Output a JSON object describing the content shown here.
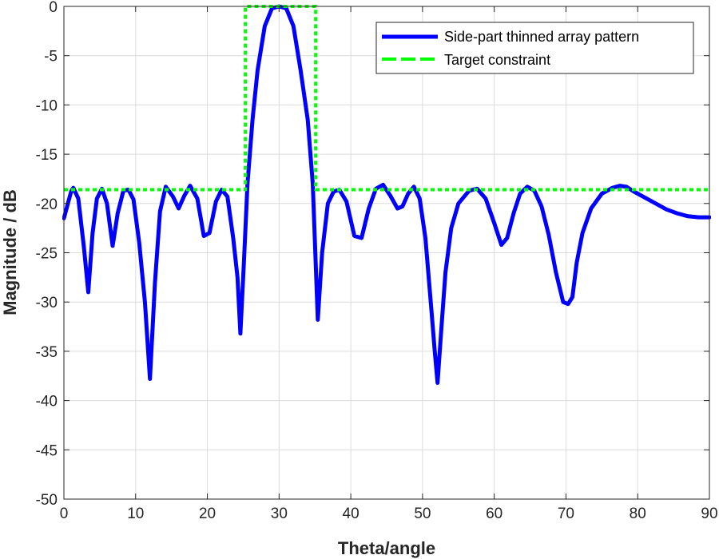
{
  "chart_data": {
    "type": "line",
    "title": "",
    "xlabel": "Theta/angle",
    "ylabel": "Magnitude / dB",
    "xlim": [
      0,
      90
    ],
    "ylim": [
      -50,
      0
    ],
    "xticks": [
      0,
      10,
      20,
      30,
      40,
      50,
      60,
      70,
      80,
      90
    ],
    "yticks": [
      0,
      -5,
      -10,
      -15,
      -20,
      -25,
      -30,
      -35,
      -40,
      -45,
      -50
    ],
    "xtick_labels": [
      "0",
      "10",
      "20",
      "30",
      "40",
      "50",
      "60",
      "70",
      "80",
      "90"
    ],
    "ytick_labels": [
      "0",
      "-5",
      "-10",
      "-15",
      "-20",
      "-25",
      "-30",
      "-35",
      "-40",
      "-45",
      "-50"
    ],
    "grid": true,
    "legend_position": "top-right",
    "series": [
      {
        "name": "Side-part thinned array pattern",
        "color": "#0000ff",
        "style": "solid",
        "x": [
          0,
          1,
          1.3,
          2,
          2.8,
          3.4,
          4,
          4.6,
          5.3,
          6,
          6.8,
          7.5,
          8.3,
          9,
          9.7,
          10.5,
          11.3,
          12,
          12.7,
          13.4,
          14.2,
          15.2,
          16,
          16.8,
          17.6,
          18.6,
          19.5,
          20.3,
          21.2,
          22,
          22.8,
          23.6,
          24.2,
          24.6,
          25.1,
          25.6,
          26.3,
          27,
          28,
          29,
          30,
          31,
          32,
          33,
          34,
          34.7,
          35.4,
          36,
          36.8,
          37.6,
          38.4,
          39.4,
          40.5,
          41.5,
          42.5,
          43.5,
          44.5,
          45.5,
          46.5,
          47.2,
          48,
          48.8,
          49.6,
          50.4,
          51.2,
          51.7,
          52.1,
          52.6,
          53.2,
          54,
          55,
          56.5,
          57.6,
          58.8,
          60,
          61,
          61.8,
          62.7,
          63.6,
          64.6,
          65.6,
          66.6,
          67.6,
          68.6,
          69.6,
          70.3,
          70.9,
          71.5,
          72.3,
          73.5,
          75,
          76.5,
          77.5,
          78.4,
          79.5,
          81,
          82.5,
          84,
          85.5,
          87,
          88.5,
          90
        ],
        "y": [
          -21.5,
          -18.8,
          -18.4,
          -19.5,
          -24.5,
          -29,
          -23,
          -19.5,
          -18.5,
          -20,
          -24.3,
          -21,
          -18.7,
          -18.6,
          -19.6,
          -24,
          -30,
          -37.8,
          -28,
          -20.8,
          -18.3,
          -19.3,
          -20.5,
          -19.2,
          -18.2,
          -19.5,
          -23.3,
          -23.0,
          -19.8,
          -18.6,
          -19.3,
          -23.5,
          -27.5,
          -33.2,
          -26,
          -18,
          -11.5,
          -6.5,
          -2,
          -0.2,
          0,
          -0.2,
          -2,
          -6.5,
          -11.5,
          -18,
          -31.8,
          -25,
          -20,
          -18.8,
          -18.6,
          -19.8,
          -23.3,
          -23.5,
          -20.5,
          -18.5,
          -18.1,
          -19.2,
          -20.5,
          -20.3,
          -19,
          -18.3,
          -19.5,
          -23.5,
          -30.5,
          -35,
          -38.2,
          -33,
          -27,
          -22.5,
          -20,
          -18.7,
          -18.5,
          -19.5,
          -22,
          -24.2,
          -23.5,
          -21,
          -19,
          -18.3,
          -18.7,
          -20.3,
          -23.2,
          -27,
          -30,
          -30.2,
          -29.5,
          -26,
          -23,
          -20.5,
          -19,
          -18.4,
          -18.2,
          -18.3,
          -18.8,
          -19.4,
          -20,
          -20.6,
          -21.0,
          -21.3,
          -21.4,
          -21.4
        ]
      },
      {
        "name": "Target constraint",
        "color": "#00ff00",
        "style": "dotted",
        "x": [
          0,
          25.3,
          25.3,
          35.1,
          35.1,
          90
        ],
        "y": [
          -18.6,
          -18.6,
          0,
          0,
          -18.6,
          -18.6
        ]
      }
    ]
  }
}
